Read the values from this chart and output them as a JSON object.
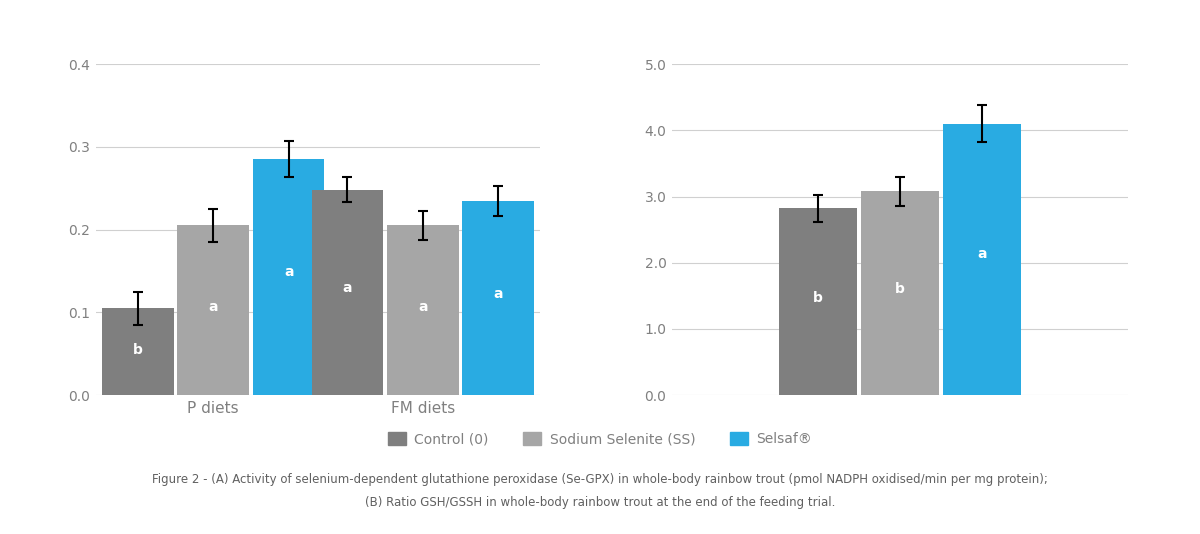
{
  "left_chart": {
    "groups": [
      "P diets",
      "FM diets"
    ],
    "series": [
      "Control (0)",
      "Sodium Selenite (SS)",
      "Selsaf®"
    ],
    "values": [
      [
        0.105,
        0.205,
        0.285
      ],
      [
        0.248,
        0.205,
        0.235
      ]
    ],
    "errors": [
      [
        0.02,
        0.02,
        0.022
      ],
      [
        0.015,
        0.018,
        0.018
      ]
    ],
    "labels": [
      [
        "b",
        "a",
        "a"
      ],
      [
        "a",
        "a",
        "a"
      ]
    ],
    "ylim": [
      0,
      0.4
    ],
    "yticks": [
      0.0,
      0.1,
      0.2,
      0.3,
      0.4
    ],
    "ytick_labels": [
      "0.0",
      "0.1",
      "0.2",
      "0.3",
      "0.4"
    ]
  },
  "right_chart": {
    "groups": [
      ""
    ],
    "series": [
      "Control (0)",
      "Sodium Selenite (SS)",
      "Selsaf®"
    ],
    "values": [
      [
        2.82,
        3.08,
        4.1
      ]
    ],
    "errors": [
      [
        0.2,
        0.22,
        0.28
      ]
    ],
    "labels": [
      [
        "b",
        "b",
        "a"
      ]
    ],
    "ylim": [
      0,
      5.0
    ],
    "yticks": [
      0.0,
      1.0,
      2.0,
      3.0,
      4.0,
      5.0
    ],
    "ytick_labels": [
      "0.0",
      "1.0",
      "2.0",
      "3.0",
      "4.0",
      "5.0"
    ]
  },
  "colors": {
    "Control (0)": "#7f7f7f",
    "Sodium Selenite (SS)": "#a6a6a6",
    "Selsaf®": "#29abe2"
  },
  "bar_width": 0.18,
  "legend": {
    "labels": [
      "Control (0)",
      "Sodium Selenite (SS)",
      "Selsaf®"
    ],
    "colors": [
      "#7f7f7f",
      "#a6a6a6",
      "#29abe2"
    ]
  },
  "figure_caption_line1": "Figure 2 - (A) Activity of selenium-dependent glutathione peroxidase (Se-GPX) in whole-body rainbow trout (pmol NADPH oxidised/min per mg protein);",
  "figure_caption_line2": "(B) Ratio GSH/GSSH in whole-body rainbow trout at the end of the feeding trial.",
  "background_color": "#ffffff",
  "grid_color": "#d0d0d0",
  "axis_label_color": "#808080",
  "bar_label_fontsize": 10,
  "tick_fontsize": 10,
  "group_label_fontsize": 11,
  "caption_fontsize": 8.5
}
